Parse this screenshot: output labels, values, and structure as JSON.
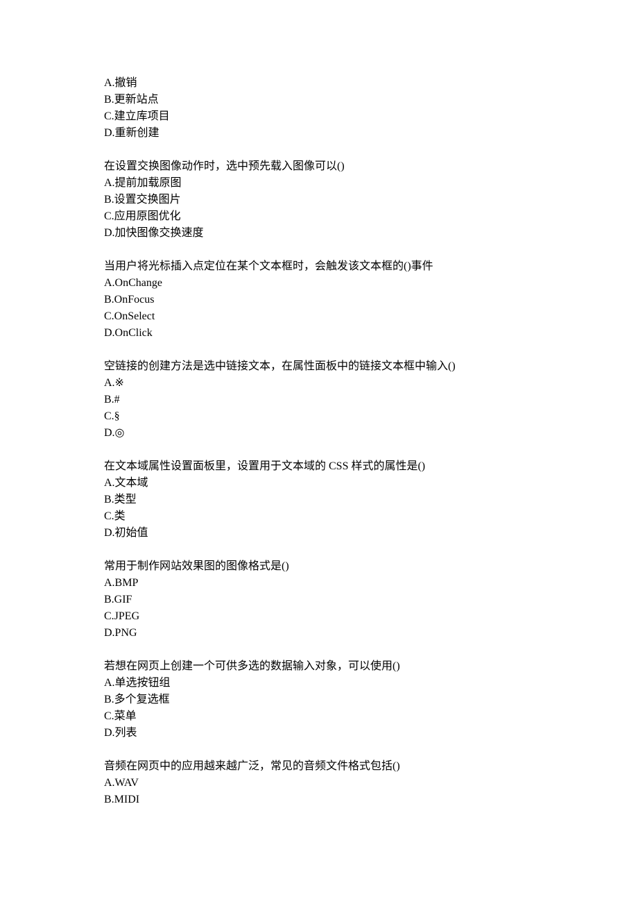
{
  "font": {
    "family": "SimSun",
    "size_pt": 12,
    "color": "#000000",
    "background_color": "#ffffff",
    "line_height": 1.5
  },
  "questions": [
    {
      "stem": "",
      "options": [
        "A.撤销",
        "B.更新站点",
        "C.建立库项目",
        "D.重新创建"
      ]
    },
    {
      "stem": "在设置交换图像动作时，选中预先载入图像可以()",
      "options": [
        "A.提前加载原图",
        "B.设置交换图片",
        "C.应用原图优化",
        "D.加快图像交换速度"
      ]
    },
    {
      "stem": "当用户将光标插入点定位在某个文本框时，会触发该文本框的()事件",
      "options": [
        "A.OnChange",
        "B.OnFocus",
        "C.OnSelect",
        "D.OnClick"
      ]
    },
    {
      "stem": "空链接的创建方法是选中链接文本，在属性面板中的链接文本框中输入()",
      "options": [
        "A.※",
        "B.#",
        "C.§",
        "D.◎"
      ]
    },
    {
      "stem": "在文本域属性设置面板里，设置用于文本域的 CSS 样式的属性是()",
      "options": [
        "A.文本域",
        "B.类型",
        "C.类",
        "D.初始值"
      ]
    },
    {
      "stem": "常用于制作网站效果图的图像格式是()",
      "options": [
        "A.BMP",
        "B.GIF",
        "C.JPEG",
        "D.PNG"
      ]
    },
    {
      "stem": "若想在网页上创建一个可供多选的数据输入对象，可以使用()",
      "options": [
        "A.单选按钮组",
        "B.多个复选框",
        "C.菜单",
        "D.列表"
      ]
    },
    {
      "stem": "音频在网页中的应用越来越广泛，常见的音频文件格式包括()",
      "options": [
        "A.WAV",
        "B.MIDI"
      ]
    }
  ]
}
